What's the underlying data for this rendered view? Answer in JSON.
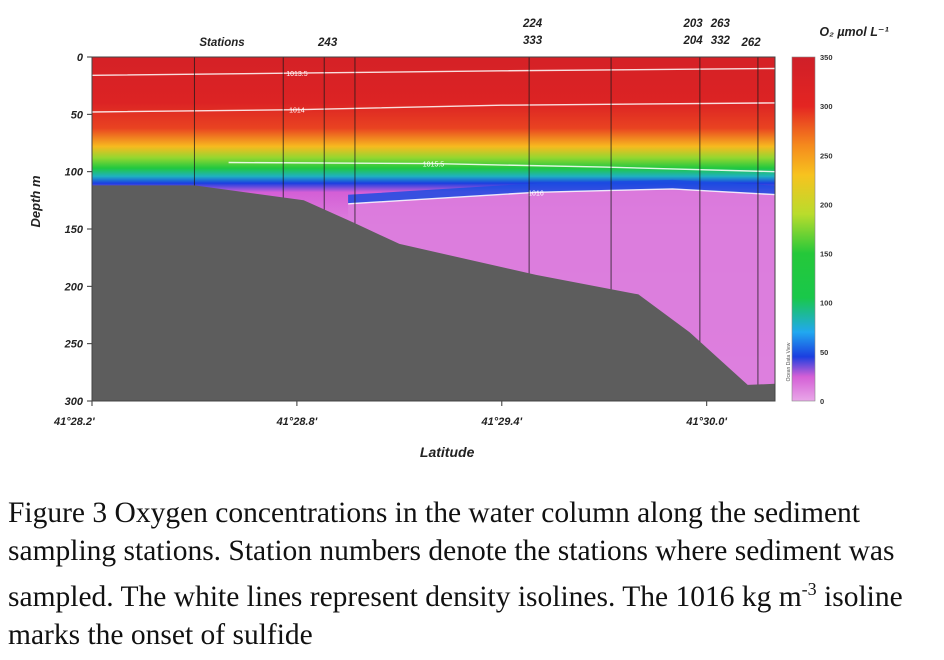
{
  "chart_data": {
    "type": "heatmap",
    "xlabel": "Latitude",
    "ylabel": "Depth  m",
    "x_ticks": [
      "41°28.2'",
      "41°28.8'",
      "41°29.4'",
      "41°30.0'"
    ],
    "x_tick_values": [
      28.2,
      28.8,
      29.4,
      30.0
    ],
    "xlim": [
      28.2,
      30.2
    ],
    "y_ticks": [
      0,
      50,
      100,
      150,
      200,
      250,
      300
    ],
    "ylim": [
      0,
      300
    ],
    "stations_label": "Stations",
    "stations": [
      {
        "label": "243",
        "lat": 28.89
      },
      {
        "label": "224",
        "lat": 29.49
      },
      {
        "label": "333",
        "lat": 29.49
      },
      {
        "label": "203",
        "lat": 29.96
      },
      {
        "label": "204",
        "lat": 29.96
      },
      {
        "label": "263",
        "lat": 30.04
      },
      {
        "label": "332",
        "lat": 30.04
      },
      {
        "label": "262",
        "lat": 30.13
      }
    ],
    "cast_lines": [
      28.5,
      28.76,
      28.88,
      28.97,
      29.48,
      29.72,
      29.98,
      30.15
    ],
    "bottom_profile": [
      {
        "lat": 28.2,
        "depth": 112
      },
      {
        "lat": 28.5,
        "depth": 112
      },
      {
        "lat": 28.82,
        "depth": 125
      },
      {
        "lat": 28.97,
        "depth": 145
      },
      {
        "lat": 29.1,
        "depth": 163
      },
      {
        "lat": 29.5,
        "depth": 190
      },
      {
        "lat": 29.8,
        "depth": 207
      },
      {
        "lat": 29.95,
        "depth": 240
      },
      {
        "lat": 30.12,
        "depth": 286
      },
      {
        "lat": 30.2,
        "depth": 285
      }
    ],
    "isolines": [
      {
        "label": "1013.5",
        "points": [
          [
            28.2,
            16
          ],
          [
            28.8,
            14
          ],
          [
            29.4,
            12
          ],
          [
            30.2,
            10
          ]
        ]
      },
      {
        "label": "1014",
        "points": [
          [
            28.2,
            48
          ],
          [
            28.8,
            46
          ],
          [
            29.4,
            42
          ],
          [
            30.2,
            40
          ]
        ]
      },
      {
        "label": "1015.5",
        "points": [
          [
            28.6,
            92
          ],
          [
            29.2,
            93
          ],
          [
            29.7,
            96
          ],
          [
            30.2,
            100
          ]
        ]
      },
      {
        "label": "1016",
        "points": [
          [
            28.95,
            128
          ],
          [
            29.5,
            118
          ],
          [
            29.9,
            115
          ],
          [
            30.2,
            120
          ]
        ]
      }
    ],
    "colorbar": {
      "title": "O₂ µmol L⁻¹",
      "min": 0,
      "max": 350,
      "ticks": [
        0,
        50,
        100,
        150,
        200,
        250,
        300,
        350
      ],
      "stops": [
        {
          "value": 0,
          "color": "#e9a7e8"
        },
        {
          "value": 25,
          "color": "#d45fd6"
        },
        {
          "value": 45,
          "color": "#1b3fe0"
        },
        {
          "value": 70,
          "color": "#21a8f0"
        },
        {
          "value": 105,
          "color": "#19c84a"
        },
        {
          "value": 150,
          "color": "#25c83a"
        },
        {
          "value": 190,
          "color": "#b9dc2c"
        },
        {
          "value": 230,
          "color": "#f7c31f"
        },
        {
          "value": 260,
          "color": "#f58a1d"
        },
        {
          "value": 300,
          "color": "#e42522"
        },
        {
          "value": 350,
          "color": "#cf1f28"
        }
      ],
      "side_text": "Ocean Data View"
    },
    "profile_layers": [
      {
        "depth": 0,
        "o2": 335
      },
      {
        "depth": 40,
        "o2": 318
      },
      {
        "depth": 62,
        "o2": 288
      },
      {
        "depth": 78,
        "o2": 235
      },
      {
        "depth": 88,
        "o2": 180
      },
      {
        "depth": 97,
        "o2": 135
      },
      {
        "depth": 104,
        "o2": 80
      },
      {
        "depth": 110,
        "o2": 45
      },
      {
        "depth": 118,
        "o2": 25
      },
      {
        "depth": 150,
        "o2": 12
      },
      {
        "depth": 300,
        "o2": 5
      }
    ],
    "colors": {
      "seafloor": "#5d5d5d",
      "isoline": "#ffffff"
    }
  },
  "caption": {
    "text_main": "Figure 3 Oxygen concentrations in the water column along the sediment sampling stations. Station numbers denote the stations where sediment was sampled. The white lines represent density isolines. The 1016 kg m",
    "superscript": "-3",
    "text_end": " isoline marks the onset of sulfide"
  }
}
